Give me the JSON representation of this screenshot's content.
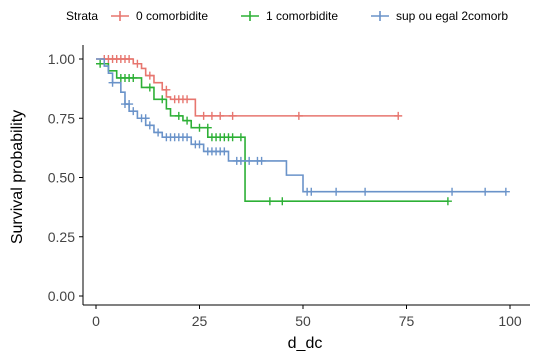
{
  "chart_data": {
    "type": "line",
    "step": true,
    "legend_title": "Strata",
    "legend_position": "top",
    "xlabel": "d_dc",
    "ylabel": "Survival probability",
    "xlim": [
      0,
      100
    ],
    "ylim": [
      0,
      1
    ],
    "x_ticks": [
      0,
      25,
      50,
      75,
      100
    ],
    "x_tick_labels": [
      "0",
      "25",
      "50",
      "75",
      "100"
    ],
    "y_ticks": [
      0,
      0.25,
      0.5,
      0.75,
      1
    ],
    "y_tick_labels": [
      "0.00",
      "0.25",
      "0.50",
      "0.75",
      "1.00"
    ],
    "grid": false,
    "series": [
      {
        "name": "0 comorbidite",
        "color": "#E7766F",
        "steps": [
          [
            0,
            1.0
          ],
          [
            9,
            0.98
          ],
          [
            11,
            0.96
          ],
          [
            12,
            0.93
          ],
          [
            14,
            0.9
          ],
          [
            16,
            0.87
          ],
          [
            17,
            0.84
          ],
          [
            18,
            0.83
          ],
          [
            24,
            0.76
          ],
          [
            73,
            0.76
          ]
        ],
        "censored": [
          [
            2,
            1.0
          ],
          [
            3,
            1.0
          ],
          [
            4,
            1.0
          ],
          [
            5,
            1.0
          ],
          [
            6,
            1.0
          ],
          [
            7,
            1.0
          ],
          [
            8,
            1.0
          ],
          [
            10,
            0.98
          ],
          [
            13,
            0.93
          ],
          [
            17,
            0.87
          ],
          [
            19,
            0.83
          ],
          [
            20,
            0.83
          ],
          [
            21,
            0.83
          ],
          [
            22,
            0.83
          ],
          [
            26,
            0.76
          ],
          [
            28,
            0.76
          ],
          [
            30,
            0.76
          ],
          [
            33,
            0.76
          ],
          [
            49,
            0.76
          ],
          [
            73,
            0.76
          ]
        ]
      },
      {
        "name": "1 comorbidite",
        "color": "#2DB036",
        "steps": [
          [
            0,
            0.98
          ],
          [
            3,
            0.95
          ],
          [
            5,
            0.92
          ],
          [
            11,
            0.88
          ],
          [
            14,
            0.83
          ],
          [
            17,
            0.79
          ],
          [
            18,
            0.76
          ],
          [
            21,
            0.74
          ],
          [
            23,
            0.71
          ],
          [
            27,
            0.67
          ],
          [
            36,
            0.4
          ],
          [
            85,
            0.4
          ]
        ],
        "censored": [
          [
            1,
            0.98
          ],
          [
            6,
            0.92
          ],
          [
            7,
            0.92
          ],
          [
            8,
            0.92
          ],
          [
            9,
            0.92
          ],
          [
            13,
            0.88
          ],
          [
            16,
            0.83
          ],
          [
            20,
            0.76
          ],
          [
            22,
            0.74
          ],
          [
            25,
            0.71
          ],
          [
            27,
            0.71
          ],
          [
            28,
            0.67
          ],
          [
            29,
            0.67
          ],
          [
            30,
            0.67
          ],
          [
            31,
            0.67
          ],
          [
            32,
            0.67
          ],
          [
            33,
            0.67
          ],
          [
            35,
            0.67
          ],
          [
            42,
            0.4
          ],
          [
            45,
            0.4
          ],
          [
            85,
            0.4
          ]
        ]
      },
      {
        "name": "sup ou egal 2comorb",
        "color": "#6A93C9",
        "steps": [
          [
            0,
            1.0
          ],
          [
            2,
            0.97
          ],
          [
            3,
            0.94
          ],
          [
            4,
            0.9
          ],
          [
            6,
            0.86
          ],
          [
            7,
            0.81
          ],
          [
            8,
            0.78
          ],
          [
            10,
            0.75
          ],
          [
            12,
            0.72
          ],
          [
            14,
            0.69
          ],
          [
            16,
            0.67
          ],
          [
            23,
            0.64
          ],
          [
            26,
            0.61
          ],
          [
            32,
            0.57
          ],
          [
            46,
            0.51
          ],
          [
            50,
            0.44
          ],
          [
            99,
            0.44
          ]
        ],
        "censored": [
          [
            4,
            0.9
          ],
          [
            7,
            0.81
          ],
          [
            8,
            0.81
          ],
          [
            9,
            0.78
          ],
          [
            11,
            0.75
          ],
          [
            12,
            0.75
          ],
          [
            13,
            0.72
          ],
          [
            15,
            0.69
          ],
          [
            17,
            0.67
          ],
          [
            18,
            0.67
          ],
          [
            19,
            0.67
          ],
          [
            20,
            0.67
          ],
          [
            21,
            0.67
          ],
          [
            22,
            0.67
          ],
          [
            24,
            0.64
          ],
          [
            25,
            0.64
          ],
          [
            27,
            0.61
          ],
          [
            28,
            0.61
          ],
          [
            29,
            0.61
          ],
          [
            30,
            0.61
          ],
          [
            31,
            0.61
          ],
          [
            34,
            0.57
          ],
          [
            35,
            0.57
          ],
          [
            37,
            0.57
          ],
          [
            39,
            0.57
          ],
          [
            40,
            0.57
          ],
          [
            51,
            0.44
          ],
          [
            52,
            0.44
          ],
          [
            58,
            0.44
          ],
          [
            65,
            0.44
          ],
          [
            86,
            0.44
          ],
          [
            94,
            0.44
          ],
          [
            99,
            0.44
          ]
        ]
      }
    ]
  }
}
